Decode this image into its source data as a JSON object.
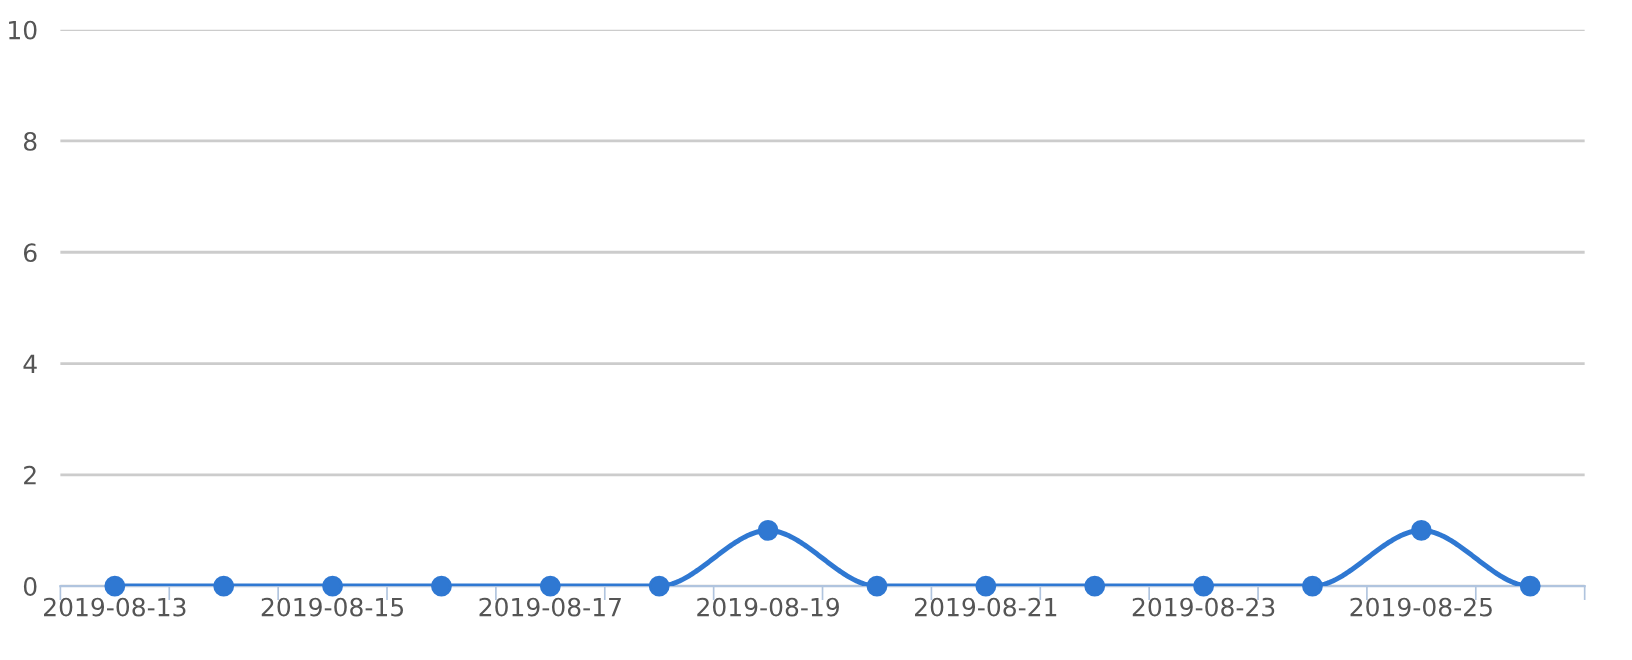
{
  "chart_data": {
    "type": "line",
    "categories": [
      "2019-08-13",
      null,
      "2019-08-15",
      null,
      "2019-08-17",
      null,
      "2019-08-19",
      null,
      "2019-08-21",
      null,
      "2019-08-23",
      null,
      "2019-08-25",
      null
    ],
    "series": [
      {
        "color": "#2f78d2",
        "values": [
          0,
          0,
          0,
          0,
          0,
          0,
          1,
          0,
          0,
          0,
          0,
          0,
          1,
          0
        ]
      }
    ],
    "ylim": [
      0,
      10
    ],
    "yticks": [
      0,
      2,
      4,
      6,
      8,
      10
    ],
    "grid": "y",
    "marker": "circle",
    "line_style": "solid"
  }
}
